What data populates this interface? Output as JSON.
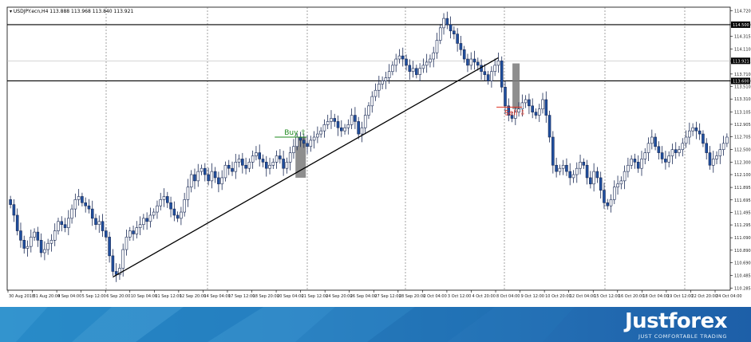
{
  "chart_data": {
    "type": "candlestick",
    "symbol_line": "USDJPY.ecn,H4  113.888 113.968 113.840 113.921",
    "price_ticks": [
      "114.720",
      "114.500",
      "114.315",
      "114.110",
      "113.921",
      "113.710",
      "113.600",
      "113.510",
      "113.310",
      "113.105",
      "112.905",
      "112.705",
      "112.500",
      "112.300",
      "112.100",
      "111.895",
      "111.695",
      "111.495",
      "111.295",
      "111.090",
      "110.890",
      "110.690",
      "110.485",
      "110.285"
    ],
    "ylim": [
      110.25,
      114.78
    ],
    "time_ticks": [
      "30 Aug 2018",
      "31 Aug 20:00",
      "4 Sep 04:00",
      "5 Sep 12:00",
      "6 Sep 20:00",
      "10 Sep 04:00",
      "11 Sep 12:00",
      "12 Sep 20:00",
      "14 Sep 04:00",
      "17 Sep 12:00",
      "18 Sep 20:00",
      "20 Sep 04:00",
      "21 Sep 12:00",
      "24 Sep 20:00",
      "26 Sep 04:00",
      "27 Sep 12:00",
      "28 Sep 20:00",
      "2 Oct 04:00",
      "3 Oct 12:00",
      "4 Oct 20:00",
      "8 Oct 04:00",
      "9 Oct 12:00",
      "10 Oct 20:00",
      "12 Oct 04:00",
      "15 Oct 12:00",
      "16 Oct 20:00",
      "18 Oct 04:00",
      "19 Oct 12:00",
      "22 Oct 20:00",
      "24 Oct 04:00"
    ],
    "levels": [
      {
        "label": "114.500",
        "price": 114.5,
        "box_color": "#000000"
      },
      {
        "label": "113.600",
        "price": 113.6,
        "box_color": "#000000"
      },
      {
        "label": "113.921",
        "price": 113.921,
        "box_color": "#000000"
      }
    ],
    "trendline": {
      "from": {
        "bar": 30,
        "price": 110.46
      },
      "to": {
        "bar": 143,
        "price": 113.97
      }
    },
    "signals": [
      {
        "label": "Buy ⇧",
        "color": "#1e8a1e",
        "bar": 84,
        "price": 112.7
      },
      {
        "label": "Sell ⇩",
        "color": "#e03020",
        "bar": 149,
        "price": 113.18
      }
    ],
    "candles_close": [
      111.62,
      111.45,
      111.2,
      111.05,
      110.92,
      110.95,
      111.1,
      111.18,
      111.05,
      110.85,
      110.9,
      111.0,
      111.05,
      111.2,
      111.35,
      111.3,
      111.25,
      111.4,
      111.55,
      111.7,
      111.75,
      111.65,
      111.6,
      111.55,
      111.4,
      111.3,
      111.35,
      111.2,
      111.1,
      110.8,
      110.55,
      110.5,
      110.6,
      110.9,
      111.1,
      111.2,
      111.15,
      111.25,
      111.3,
      111.4,
      111.35,
      111.45,
      111.5,
      111.6,
      111.7,
      111.75,
      111.65,
      111.55,
      111.45,
      111.4,
      111.5,
      111.7,
      111.9,
      112.1,
      112.0,
      112.15,
      112.2,
      112.1,
      112.0,
      112.15,
      112.05,
      111.95,
      112.05,
      112.25,
      112.2,
      112.15,
      112.3,
      112.35,
      112.25,
      112.2,
      112.3,
      112.4,
      112.45,
      112.35,
      112.3,
      112.2,
      112.25,
      112.3,
      112.4,
      112.35,
      112.2,
      112.3,
      112.45,
      112.55,
      112.7,
      112.65,
      112.6,
      112.55,
      112.65,
      112.7,
      112.75,
      112.8,
      112.9,
      112.95,
      113.0,
      112.95,
      112.85,
      112.8,
      112.85,
      112.9,
      113.05,
      112.95,
      112.75,
      112.85,
      113.05,
      113.2,
      113.35,
      113.45,
      113.55,
      113.6,
      113.65,
      113.75,
      113.85,
      113.95,
      114.0,
      113.95,
      113.85,
      113.75,
      113.8,
      113.7,
      113.8,
      113.85,
      113.9,
      113.95,
      114.05,
      114.25,
      114.45,
      114.6,
      114.5,
      114.4,
      114.35,
      114.2,
      114.1,
      113.95,
      113.85,
      113.95,
      113.9,
      113.85,
      113.75,
      113.7,
      113.6,
      113.75,
      113.85,
      113.92,
      113.5,
      113.2,
      113.05,
      113.0,
      113.1,
      113.15,
      113.25,
      113.3,
      113.2,
      113.1,
      113.05,
      113.15,
      113.3,
      113.05,
      112.7,
      112.25,
      112.15,
      112.2,
      112.25,
      112.15,
      112.05,
      112.1,
      112.2,
      112.3,
      112.25,
      112.05,
      111.95,
      112.15,
      112.05,
      111.85,
      111.65,
      111.6,
      111.7,
      111.9,
      111.95,
      112.0,
      112.15,
      112.25,
      112.35,
      112.3,
      112.2,
      112.35,
      112.45,
      112.6,
      112.7,
      112.55,
      112.45,
      112.35,
      112.3,
      112.4,
      112.5,
      112.45,
      112.5,
      112.6,
      112.7,
      112.8,
      112.85,
      112.8,
      112.75,
      112.6,
      112.45,
      112.25,
      112.35,
      112.4,
      112.5,
      112.6,
      112.7
    ]
  },
  "footer": {
    "brand": "Justforex",
    "tagline": "JUST COMFORTABLE TRADING"
  }
}
